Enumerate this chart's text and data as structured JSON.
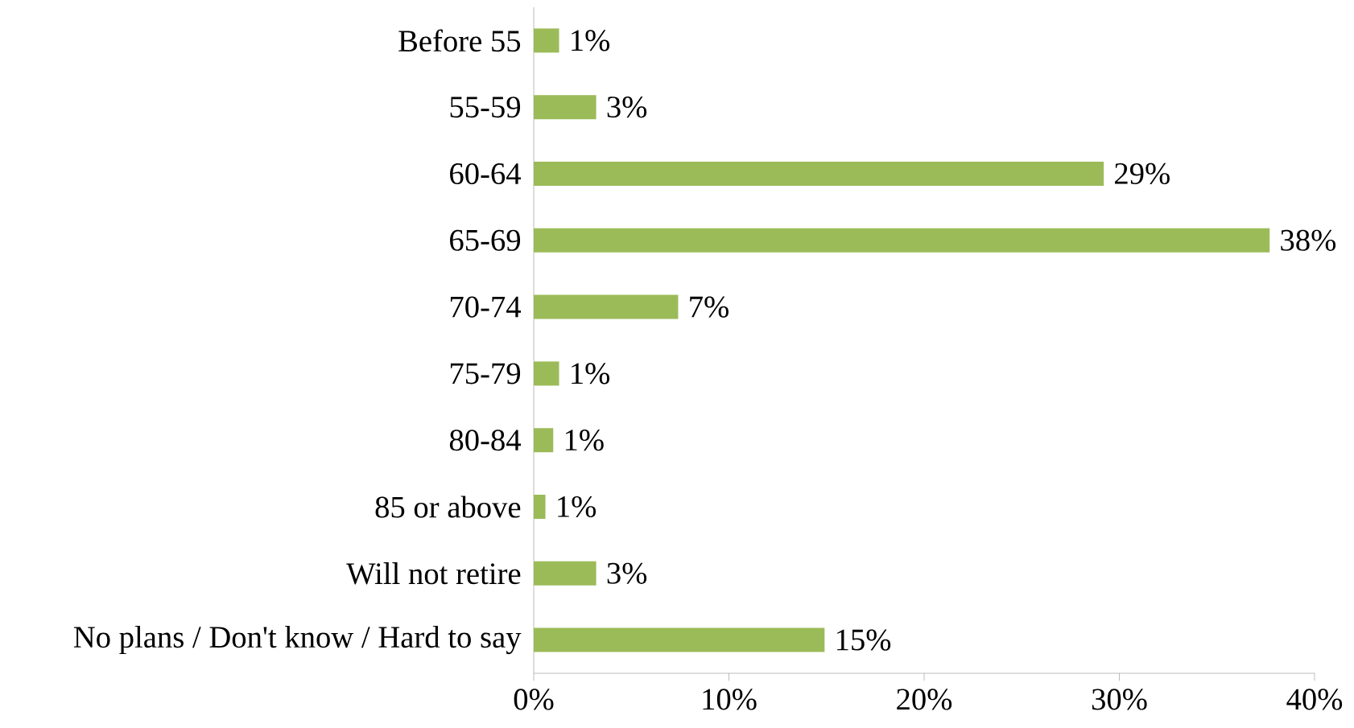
{
  "chart_data": {
    "type": "bar",
    "orientation": "horizontal",
    "categories": [
      "Before 55",
      "55-59",
      "60-64",
      "65-69",
      "70-74",
      "75-79",
      "80-84",
      "85 or above",
      "Will not retire",
      "No plans / Don't know / Hard to say"
    ],
    "values": [
      1.3,
      3.2,
      29.2,
      37.7,
      7.4,
      1.3,
      1.0,
      0.6,
      3.2,
      14.9
    ],
    "value_labels": [
      "1%",
      "3%",
      "29%",
      "38%",
      "7%",
      "1%",
      "1%",
      "1%",
      "3%",
      "15%"
    ],
    "color": "#9bbb59",
    "xlim": [
      0,
      40
    ],
    "xticks": [
      {
        "value": 0,
        "label": "0%"
      },
      {
        "value": 10,
        "label": "10%"
      },
      {
        "value": 20,
        "label": "20%"
      },
      {
        "value": 30,
        "label": "30%"
      },
      {
        "value": 40,
        "label": "40%"
      }
    ]
  }
}
